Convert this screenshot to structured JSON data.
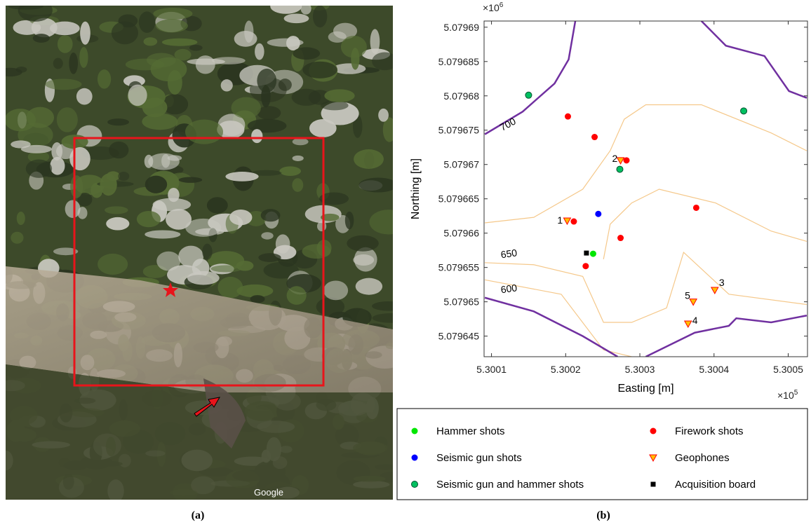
{
  "captions": [
    "(a)",
    "(b)"
  ],
  "image_watermark": "Google",
  "chart_data": {
    "type": "scatter",
    "xlabel": "Easting [m]",
    "ylabel": "Northing [m]",
    "x_multiplier": {
      "base": "×10",
      "exponent": "5"
    },
    "y_multiplier": {
      "base": "×10",
      "exponent": "6"
    },
    "xlim": [
      5.30009,
      5.300526
    ],
    "ylim": [
      5.079642,
      5.0796909
    ],
    "xticks": [
      5.3001,
      5.3002,
      5.3003,
      5.3004,
      5.3005
    ],
    "yticks": [
      5.079645,
      5.07965,
      5.079655,
      5.07966,
      5.079665,
      5.07967,
      5.079675,
      5.07968,
      5.079685,
      5.07969
    ],
    "series": [
      {
        "name": "Hammer shots",
        "color": "#00e600",
        "marker": "circle",
        "x": [
          5.300237
        ],
        "y": [
          5.079657
        ]
      },
      {
        "name": "Firework shots",
        "color": "#ff0000",
        "marker": "circle",
        "x": [
          5.300203,
          5.300239,
          5.300282,
          5.300211,
          5.300274,
          5.300227,
          5.300376
        ],
        "y": [
          5.079677,
          5.079674,
          5.0796706,
          5.0796617,
          5.0796593,
          5.0796552,
          5.0796637
        ]
      },
      {
        "name": "Seismic gun shots",
        "color": "#0000ff",
        "marker": "circle",
        "x": [
          5.300244
        ],
        "y": [
          5.0796628
        ]
      },
      {
        "name": "Geophones",
        "color": "#ffc000",
        "edge": "#ff0000",
        "marker": "triangle",
        "x": [
          5.300202,
          5.300274,
          5.300401,
          5.300365,
          5.300372
        ],
        "y": [
          5.0796618,
          5.0796706,
          5.0796517,
          5.0796468,
          5.07965
        ],
        "point_labels": [
          "1",
          "2",
          "3",
          "4",
          "5"
        ]
      },
      {
        "name": "Seismic gun and hammer shots",
        "color": "#00c060",
        "edge": "#005030",
        "marker": "circle",
        "x": [
          5.30015,
          5.300273,
          5.30044
        ],
        "y": [
          5.0796801,
          5.0796693,
          5.0796778
        ]
      },
      {
        "name": "Acquisition board",
        "color": "#000000",
        "marker": "square",
        "x": [
          5.300228
        ],
        "y": [
          5.0796571
        ]
      }
    ],
    "contours": [
      {
        "color": "#7030a0",
        "label": "700",
        "x": [
          5.300091,
          5.300142,
          5.300185,
          5.300204,
          5.300213
        ],
        "y": [
          5.0796744,
          5.0796777,
          5.0796818,
          5.0796853,
          5.0796909
        ]
      },
      {
        "color": "#7030a0",
        "x": [
          5.300383,
          5.300416,
          5.300468,
          5.300501,
          5.300525
        ],
        "y": [
          5.0796909,
          5.0796873,
          5.0796858,
          5.0796807,
          5.0796797
        ]
      },
      {
        "color": "#f5c88a",
        "x": [
          5.300091,
          5.300157,
          5.300223,
          5.30026,
          5.300279,
          5.300308,
          5.300383,
          5.300477,
          5.300525
        ],
        "y": [
          5.0796615,
          5.0796623,
          5.0796664,
          5.079672,
          5.0796766,
          5.0796787,
          5.0796787,
          5.0796746,
          5.079672
        ]
      },
      {
        "color": "#f5c88a",
        "x": [
          5.300251,
          5.30026,
          5.300289,
          5.300326,
          5.300402,
          5.300477,
          5.300525
        ],
        "y": [
          5.0796562,
          5.0796613,
          5.0796644,
          5.0796664,
          5.0796644,
          5.0796603,
          5.0796588
        ]
      },
      {
        "color": "#f5c88a",
        "label": "650",
        "x": [
          5.300091,
          5.300157,
          5.300223,
          5.300251,
          5.300289,
          5.300336,
          5.300359,
          5.30042,
          5.300525
        ],
        "y": [
          5.0796557,
          5.0796554,
          5.0796537,
          5.079647,
          5.079647,
          5.0796491,
          5.0796572,
          5.0796511,
          5.0796496
        ]
      },
      {
        "color": "#f5c88a",
        "x": [
          5.300091,
          5.300194,
          5.300251,
          5.300289
        ],
        "y": [
          5.0796532,
          5.0796511,
          5.079643,
          5.079642
        ]
      },
      {
        "color": "#7030a0",
        "label": "600",
        "x": [
          5.300091,
          5.300157,
          5.300223,
          5.30027
        ],
        "y": [
          5.0796506,
          5.0796486,
          5.079645,
          5.079642
        ]
      },
      {
        "color": "#7030a0",
        "x": [
          5.300308,
          5.300374,
          5.30042,
          5.30043,
          5.300477,
          5.300525
        ],
        "y": [
          5.079642,
          5.0796455,
          5.0796465,
          5.0796476,
          5.079647,
          5.079648
        ]
      }
    ]
  }
}
